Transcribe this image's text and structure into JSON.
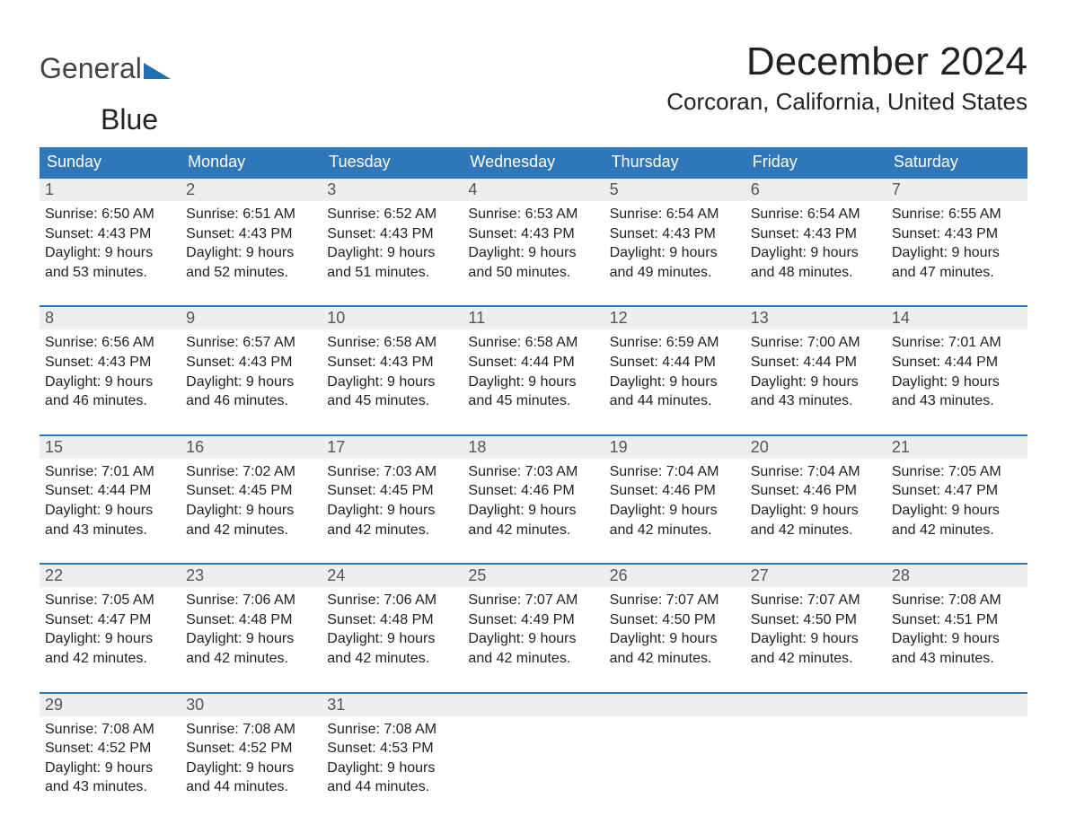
{
  "brand": {
    "part1": "General",
    "part2": "Blue",
    "accent_color": "#1f6fb2"
  },
  "title": "December 2024",
  "location": "Corcoran, California, United States",
  "colors": {
    "header_bg": "#2f77b8",
    "header_text": "#ffffff",
    "daynum_bg": "#eeeeee",
    "daynum_border": "#2f77b8",
    "daynum_text": "#555555",
    "body_text": "#222222",
    "page_bg": "#ffffff"
  },
  "day_headers": [
    "Sunday",
    "Monday",
    "Tuesday",
    "Wednesday",
    "Thursday",
    "Friday",
    "Saturday"
  ],
  "weeks": [
    [
      {
        "n": "1",
        "sr": "Sunrise: 6:50 AM",
        "ss": "Sunset: 4:43 PM",
        "d1": "Daylight: 9 hours",
        "d2": "and 53 minutes."
      },
      {
        "n": "2",
        "sr": "Sunrise: 6:51 AM",
        "ss": "Sunset: 4:43 PM",
        "d1": "Daylight: 9 hours",
        "d2": "and 52 minutes."
      },
      {
        "n": "3",
        "sr": "Sunrise: 6:52 AM",
        "ss": "Sunset: 4:43 PM",
        "d1": "Daylight: 9 hours",
        "d2": "and 51 minutes."
      },
      {
        "n": "4",
        "sr": "Sunrise: 6:53 AM",
        "ss": "Sunset: 4:43 PM",
        "d1": "Daylight: 9 hours",
        "d2": "and 50 minutes."
      },
      {
        "n": "5",
        "sr": "Sunrise: 6:54 AM",
        "ss": "Sunset: 4:43 PM",
        "d1": "Daylight: 9 hours",
        "d2": "and 49 minutes."
      },
      {
        "n": "6",
        "sr": "Sunrise: 6:54 AM",
        "ss": "Sunset: 4:43 PM",
        "d1": "Daylight: 9 hours",
        "d2": "and 48 minutes."
      },
      {
        "n": "7",
        "sr": "Sunrise: 6:55 AM",
        "ss": "Sunset: 4:43 PM",
        "d1": "Daylight: 9 hours",
        "d2": "and 47 minutes."
      }
    ],
    [
      {
        "n": "8",
        "sr": "Sunrise: 6:56 AM",
        "ss": "Sunset: 4:43 PM",
        "d1": "Daylight: 9 hours",
        "d2": "and 46 minutes."
      },
      {
        "n": "9",
        "sr": "Sunrise: 6:57 AM",
        "ss": "Sunset: 4:43 PM",
        "d1": "Daylight: 9 hours",
        "d2": "and 46 minutes."
      },
      {
        "n": "10",
        "sr": "Sunrise: 6:58 AM",
        "ss": "Sunset: 4:43 PM",
        "d1": "Daylight: 9 hours",
        "d2": "and 45 minutes."
      },
      {
        "n": "11",
        "sr": "Sunrise: 6:58 AM",
        "ss": "Sunset: 4:44 PM",
        "d1": "Daylight: 9 hours",
        "d2": "and 45 minutes."
      },
      {
        "n": "12",
        "sr": "Sunrise: 6:59 AM",
        "ss": "Sunset: 4:44 PM",
        "d1": "Daylight: 9 hours",
        "d2": "and 44 minutes."
      },
      {
        "n": "13",
        "sr": "Sunrise: 7:00 AM",
        "ss": "Sunset: 4:44 PM",
        "d1": "Daylight: 9 hours",
        "d2": "and 43 minutes."
      },
      {
        "n": "14",
        "sr": "Sunrise: 7:01 AM",
        "ss": "Sunset: 4:44 PM",
        "d1": "Daylight: 9 hours",
        "d2": "and 43 minutes."
      }
    ],
    [
      {
        "n": "15",
        "sr": "Sunrise: 7:01 AM",
        "ss": "Sunset: 4:44 PM",
        "d1": "Daylight: 9 hours",
        "d2": "and 43 minutes."
      },
      {
        "n": "16",
        "sr": "Sunrise: 7:02 AM",
        "ss": "Sunset: 4:45 PM",
        "d1": "Daylight: 9 hours",
        "d2": "and 42 minutes."
      },
      {
        "n": "17",
        "sr": "Sunrise: 7:03 AM",
        "ss": "Sunset: 4:45 PM",
        "d1": "Daylight: 9 hours",
        "d2": "and 42 minutes."
      },
      {
        "n": "18",
        "sr": "Sunrise: 7:03 AM",
        "ss": "Sunset: 4:46 PM",
        "d1": "Daylight: 9 hours",
        "d2": "and 42 minutes."
      },
      {
        "n": "19",
        "sr": "Sunrise: 7:04 AM",
        "ss": "Sunset: 4:46 PM",
        "d1": "Daylight: 9 hours",
        "d2": "and 42 minutes."
      },
      {
        "n": "20",
        "sr": "Sunrise: 7:04 AM",
        "ss": "Sunset: 4:46 PM",
        "d1": "Daylight: 9 hours",
        "d2": "and 42 minutes."
      },
      {
        "n": "21",
        "sr": "Sunrise: 7:05 AM",
        "ss": "Sunset: 4:47 PM",
        "d1": "Daylight: 9 hours",
        "d2": "and 42 minutes."
      }
    ],
    [
      {
        "n": "22",
        "sr": "Sunrise: 7:05 AM",
        "ss": "Sunset: 4:47 PM",
        "d1": "Daylight: 9 hours",
        "d2": "and 42 minutes."
      },
      {
        "n": "23",
        "sr": "Sunrise: 7:06 AM",
        "ss": "Sunset: 4:48 PM",
        "d1": "Daylight: 9 hours",
        "d2": "and 42 minutes."
      },
      {
        "n": "24",
        "sr": "Sunrise: 7:06 AM",
        "ss": "Sunset: 4:48 PM",
        "d1": "Daylight: 9 hours",
        "d2": "and 42 minutes."
      },
      {
        "n": "25",
        "sr": "Sunrise: 7:07 AM",
        "ss": "Sunset: 4:49 PM",
        "d1": "Daylight: 9 hours",
        "d2": "and 42 minutes."
      },
      {
        "n": "26",
        "sr": "Sunrise: 7:07 AM",
        "ss": "Sunset: 4:50 PM",
        "d1": "Daylight: 9 hours",
        "d2": "and 42 minutes."
      },
      {
        "n": "27",
        "sr": "Sunrise: 7:07 AM",
        "ss": "Sunset: 4:50 PM",
        "d1": "Daylight: 9 hours",
        "d2": "and 42 minutes."
      },
      {
        "n": "28",
        "sr": "Sunrise: 7:08 AM",
        "ss": "Sunset: 4:51 PM",
        "d1": "Daylight: 9 hours",
        "d2": "and 43 minutes."
      }
    ],
    [
      {
        "n": "29",
        "sr": "Sunrise: 7:08 AM",
        "ss": "Sunset: 4:52 PM",
        "d1": "Daylight: 9 hours",
        "d2": "and 43 minutes."
      },
      {
        "n": "30",
        "sr": "Sunrise: 7:08 AM",
        "ss": "Sunset: 4:52 PM",
        "d1": "Daylight: 9 hours",
        "d2": "and 44 minutes."
      },
      {
        "n": "31",
        "sr": "Sunrise: 7:08 AM",
        "ss": "Sunset: 4:53 PM",
        "d1": "Daylight: 9 hours",
        "d2": "and 44 minutes."
      },
      null,
      null,
      null,
      null
    ]
  ]
}
